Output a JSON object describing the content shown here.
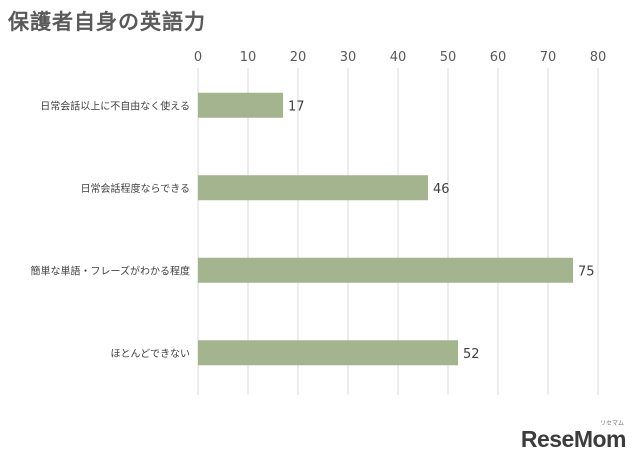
{
  "chart_data": {
    "type": "bar",
    "orientation": "horizontal",
    "title": "保護者自身の英語力",
    "categories": [
      "日常会話以上に不自由なく使える",
      "日常会話程度ならできる",
      "簡単な単語・フレーズがわかる程度",
      "ほとんどできない"
    ],
    "values": [
      17,
      46,
      75,
      52
    ],
    "xlim": [
      0,
      80
    ],
    "xticks": [
      0,
      10,
      20,
      30,
      40,
      50,
      60,
      70,
      80
    ],
    "xaxis_position": "top",
    "grid": true,
    "bar_color": "#a3b48f",
    "data_labels": true
  },
  "brand": {
    "name": "ReseMom",
    "reading": "リセマム"
  }
}
